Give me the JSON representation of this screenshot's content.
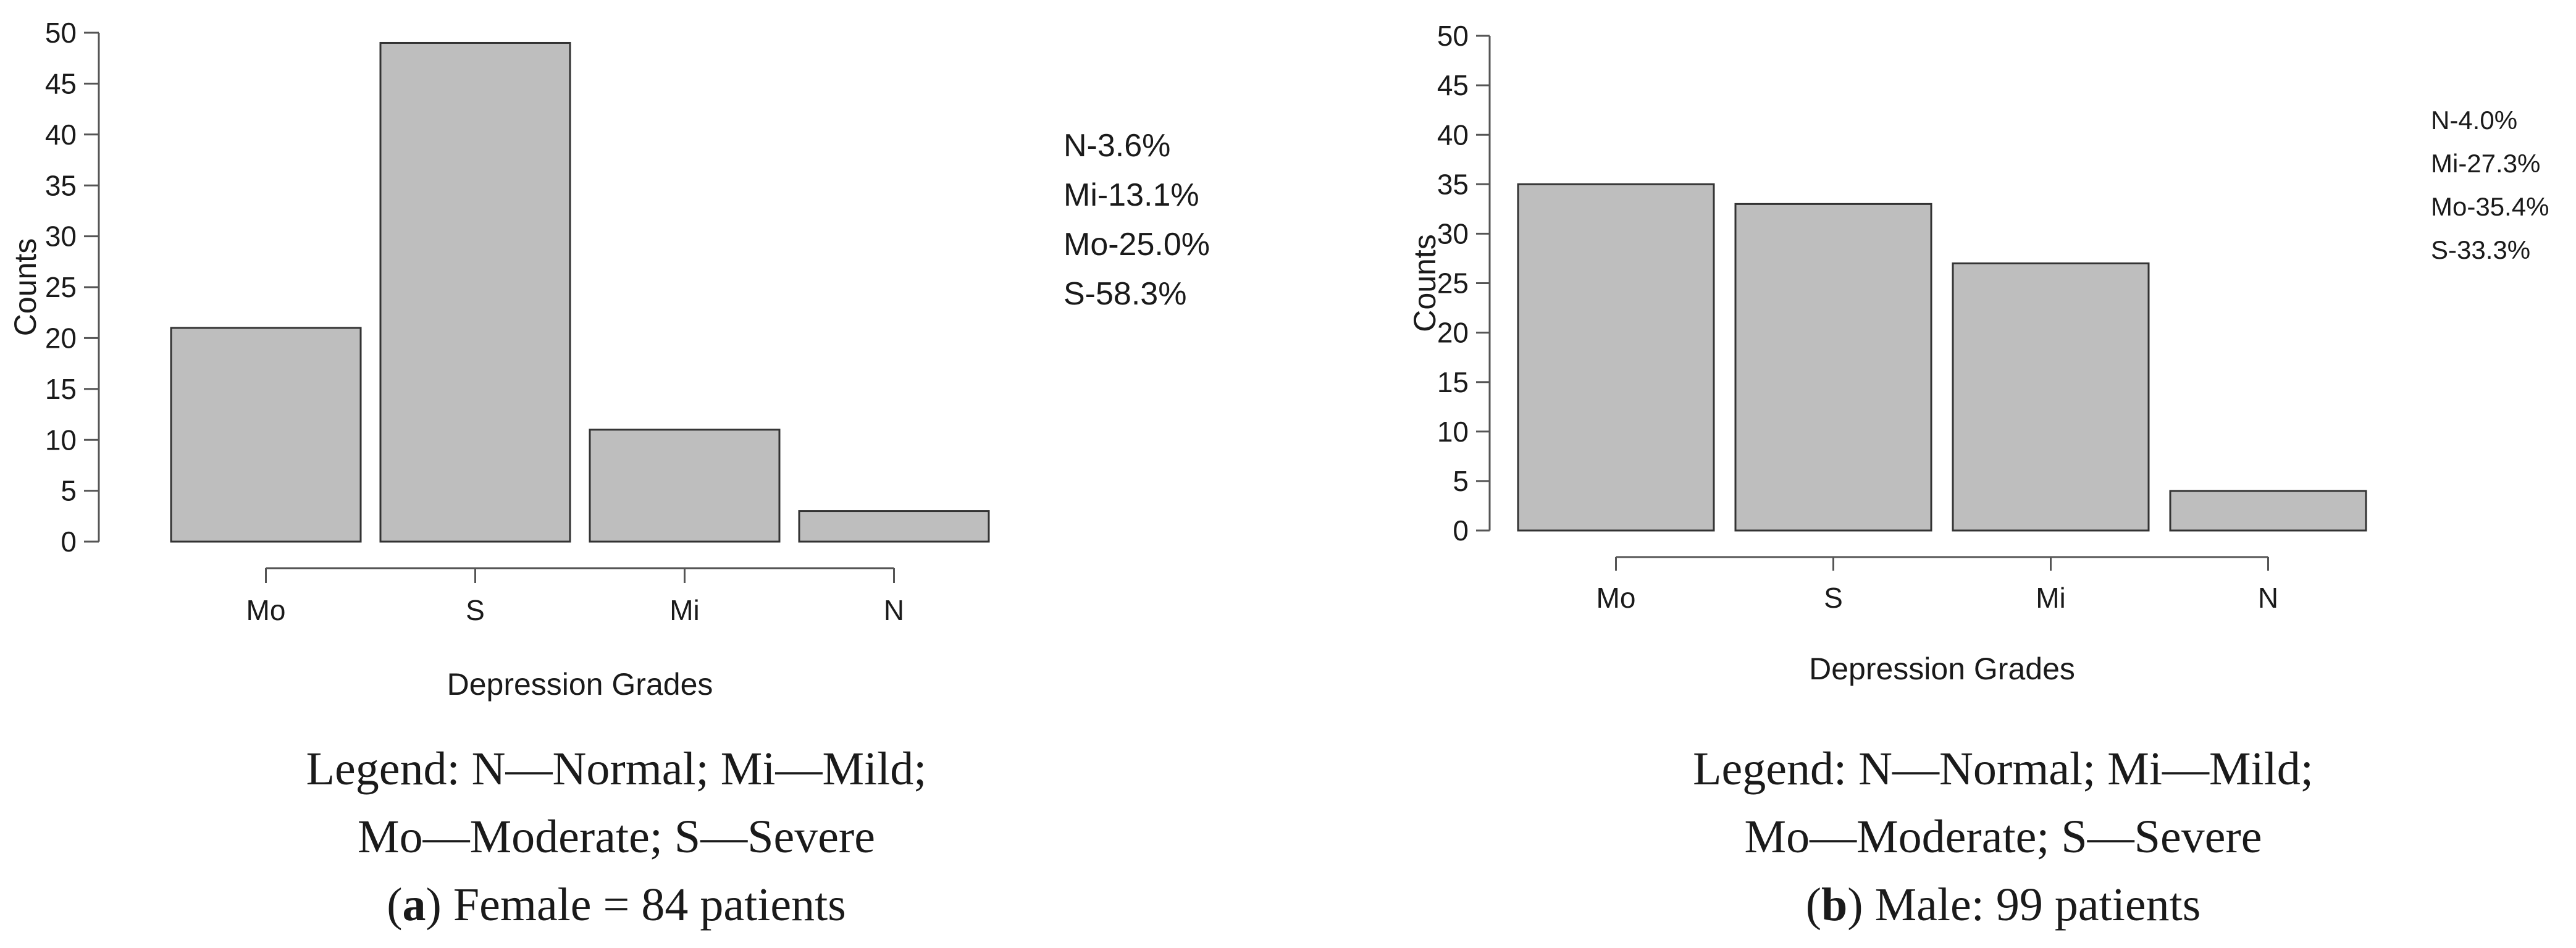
{
  "chart_data": [
    {
      "type": "bar",
      "panel": "a",
      "categories": [
        "Mo",
        "S",
        "Mi",
        "N"
      ],
      "values": [
        21,
        49,
        11,
        3
      ],
      "xlabel": "Depression Grades",
      "ylabel": "Counts",
      "ylim": [
        0,
        50
      ],
      "yticks": [
        "0",
        "5",
        "10",
        "15",
        "20",
        "25",
        "30",
        "35",
        "40",
        "45",
        "50"
      ],
      "bar_color": "#bebebe",
      "percentages": [
        "N-3.6%",
        "Mi-13.1%",
        "Mo-25.0%",
        "S-58.3%"
      ],
      "legend_lines": [
        "Legend: N—Normal; Mi—Mild;",
        "Mo—Moderate; S—Severe"
      ],
      "caption_letter": "a",
      "caption_text": " Female = 84 patients"
    },
    {
      "type": "bar",
      "panel": "b",
      "categories": [
        "Mo",
        "S",
        "Mi",
        "N"
      ],
      "values": [
        35,
        33,
        27,
        4
      ],
      "xlabel": "Depression Grades",
      "ylabel": "Counts",
      "ylim": [
        0,
        50
      ],
      "yticks": [
        "0",
        "5",
        "10",
        "15",
        "20",
        "25",
        "30",
        "35",
        "40",
        "45",
        "50"
      ],
      "bar_color": "#bebebe",
      "percentages": [
        "N-4.0%",
        "Mi-27.3%",
        "Mo-35.4%",
        "S-33.3%"
      ],
      "legend_lines": [
        "Legend: N—Normal; Mi—Mild;",
        "Mo—Moderate; S—Severe"
      ],
      "caption_letter": "b",
      "caption_text": " Male: 99 patients"
    }
  ]
}
